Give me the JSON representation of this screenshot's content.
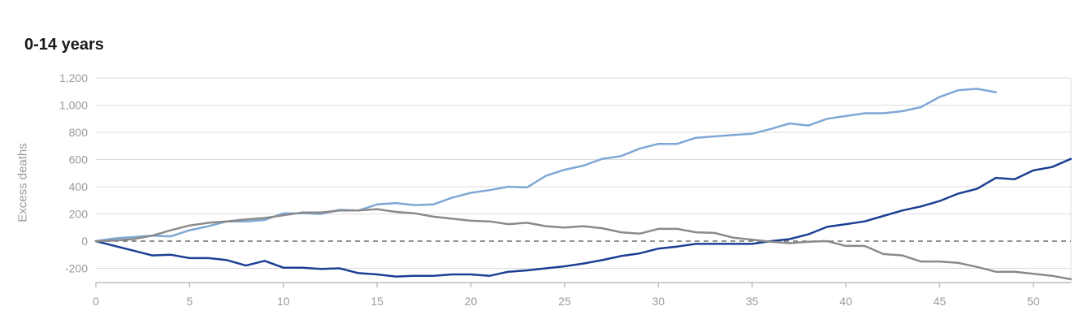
{
  "chart_data": {
    "type": "line",
    "title": "0-14 years",
    "ylabel": "Excess deaths",
    "xlabel": "",
    "xlim": [
      0,
      52
    ],
    "ylim": [
      -300,
      1200
    ],
    "yticks": [
      -200,
      0,
      200,
      400,
      600,
      800,
      1000,
      1200
    ],
    "yticklabels": [
      "-200",
      "0",
      "200",
      "400",
      "600",
      "800",
      "1,000",
      "1,200"
    ],
    "xticks": [
      0,
      5,
      10,
      15,
      20,
      25,
      30,
      35,
      40,
      45,
      50
    ],
    "xticklabels": [
      "0",
      "5",
      "10",
      "15",
      "20",
      "25",
      "30",
      "35",
      "40",
      "45",
      "50"
    ],
    "grid": true,
    "zero_line": "dashed",
    "series": [
      {
        "color": "#7fa7d6",
        "x": [
          0,
          1,
          2,
          3,
          4,
          5,
          6,
          7,
          8,
          9,
          10,
          11,
          12,
          13,
          14,
          15,
          16,
          17,
          18,
          19,
          20,
          21,
          22,
          23,
          24,
          25,
          26,
          27,
          28,
          29,
          30,
          31,
          32,
          33,
          34,
          35,
          36,
          37,
          38,
          39,
          40,
          41,
          42,
          43,
          44,
          45,
          46,
          47,
          48
        ],
        "values": [
          0,
          20,
          30,
          40,
          35,
          80,
          110,
          145,
          145,
          155,
          205,
          205,
          200,
          230,
          225,
          270,
          280,
          265,
          270,
          320,
          355,
          375,
          400,
          395,
          480,
          525,
          555,
          605,
          625,
          680,
          715,
          715,
          760,
          770,
          780,
          790,
          825,
          865,
          850,
          900,
          920,
          940,
          940,
          955,
          985,
          1060,
          1110,
          1120,
          1095
        ]
      },
      {
        "color": "#1c3f94",
        "x": [
          0,
          1,
          2,
          3,
          4,
          5,
          6,
          7,
          8,
          9,
          10,
          11,
          12,
          13,
          14,
          15,
          16,
          17,
          18,
          19,
          20,
          21,
          22,
          23,
          24,
          25,
          26,
          27,
          28,
          29,
          30,
          31,
          32,
          33,
          34,
          35,
          36,
          37,
          38,
          39,
          40,
          41,
          42,
          43,
          44,
          45,
          46,
          47,
          48,
          49,
          50,
          51,
          52
        ],
        "values": [
          0,
          -35,
          -70,
          -105,
          -100,
          -125,
          -125,
          -140,
          -180,
          -145,
          -195,
          -195,
          -205,
          -200,
          -235,
          -245,
          -260,
          -255,
          -255,
          -245,
          -245,
          -255,
          -225,
          -215,
          -200,
          -185,
          -165,
          -140,
          -110,
          -90,
          -55,
          -40,
          -20,
          -20,
          -20,
          -20,
          0,
          15,
          50,
          105,
          125,
          145,
          185,
          225,
          255,
          295,
          350,
          385,
          465,
          455,
          520,
          545,
          605
        ]
      },
      {
        "color": "#8a8a8a",
        "x": [
          0,
          1,
          2,
          3,
          4,
          5,
          6,
          7,
          8,
          9,
          10,
          11,
          12,
          13,
          14,
          15,
          16,
          17,
          18,
          19,
          20,
          21,
          22,
          23,
          24,
          25,
          26,
          27,
          28,
          29,
          30,
          31,
          32,
          33,
          34,
          35,
          36,
          37,
          38,
          39,
          40,
          41,
          42,
          43,
          44,
          45,
          46,
          47,
          48,
          49,
          50,
          51,
          52
        ],
        "values": [
          0,
          5,
          15,
          40,
          80,
          115,
          135,
          145,
          160,
          170,
          190,
          210,
          210,
          225,
          225,
          235,
          215,
          205,
          180,
          165,
          150,
          145,
          125,
          135,
          110,
          100,
          110,
          95,
          65,
          55,
          90,
          90,
          65,
          60,
          25,
          10,
          -5,
          -15,
          -5,
          0,
          -35,
          -35,
          -95,
          -105,
          -150,
          -150,
          -160,
          -190,
          -225,
          -225,
          -240,
          -255,
          -280
        ]
      }
    ]
  }
}
